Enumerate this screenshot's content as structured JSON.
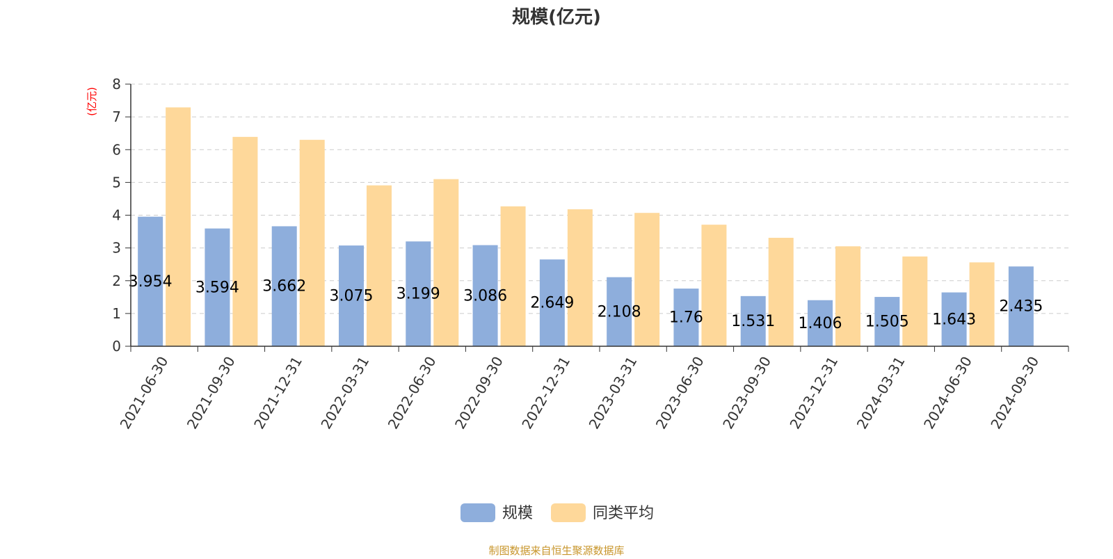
{
  "chart_data": {
    "type": "bar",
    "title": "规模(亿元)",
    "ylabel": "(亿元)",
    "xlabel": "",
    "ylim": [
      0,
      8
    ],
    "yticks": [
      0,
      1,
      2,
      3,
      4,
      5,
      6,
      7,
      8
    ],
    "grid": true,
    "legend_position": "bottom",
    "categories": [
      "2021-06-30",
      "2021-09-30",
      "2021-12-31",
      "2022-03-31",
      "2022-06-30",
      "2022-09-30",
      "2022-12-31",
      "2023-03-31",
      "2023-06-30",
      "2023-09-30",
      "2023-12-31",
      "2024-03-31",
      "2024-06-30",
      "2024-09-30"
    ],
    "series": [
      {
        "name": "规模",
        "color": "#8eaedc",
        "values": [
          3.954,
          3.594,
          3.662,
          3.075,
          3.199,
          3.086,
          2.649,
          2.108,
          1.76,
          1.531,
          1.406,
          1.505,
          1.643,
          2.435
        ],
        "data_labels": [
          "3.954",
          "3.594",
          "3.662",
          "3.075",
          "3.199",
          "3.086",
          "2.649",
          "2.108",
          "1.76",
          "1.531",
          "1.406",
          "1.505",
          "1.643",
          "2.435"
        ]
      },
      {
        "name": "同类平均",
        "color": "#fed89a",
        "values": [
          7.29,
          6.39,
          6.3,
          4.91,
          5.1,
          4.27,
          4.18,
          4.07,
          3.71,
          3.31,
          3.05,
          2.74,
          2.56,
          null
        ]
      }
    ],
    "source_note": "制图数据来自恒生聚源数据库"
  }
}
